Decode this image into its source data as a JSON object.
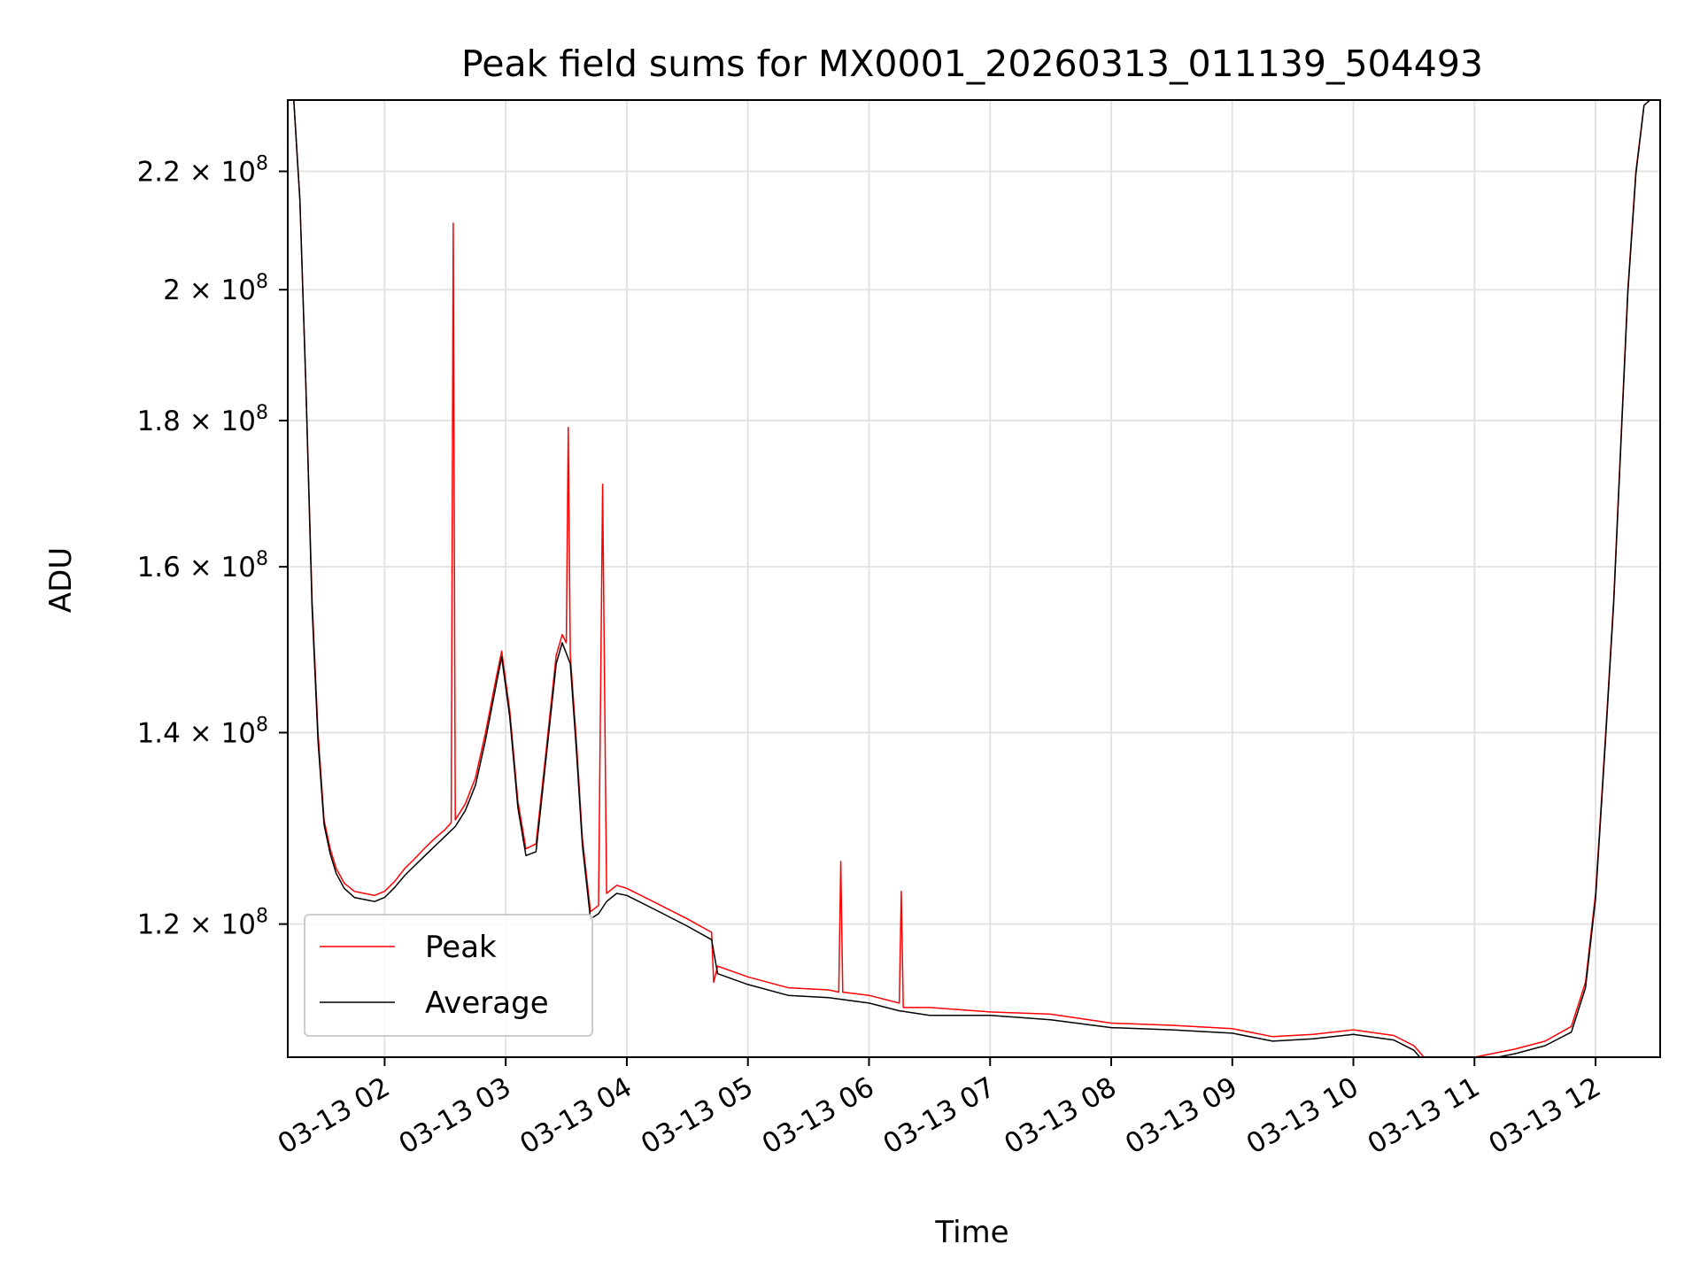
{
  "chart_data": {
    "type": "line",
    "title": "Peak field sums for MX0001_20260313_011139_504493",
    "xlabel": "Time",
    "ylabel": "ADU",
    "y_scale": "log",
    "xlim": [
      "2026-03-13 01:12",
      "2026-03-13 12:32"
    ],
    "ylim": [
      107800000.0,
      233000000.0
    ],
    "grid": true,
    "legend_position": "lower-left",
    "x_ticks": [
      "2026-03-13 02:00",
      "2026-03-13 03:00",
      "2026-03-13 04:00",
      "2026-03-13 05:00",
      "2026-03-13 06:00",
      "2026-03-13 07:00",
      "2026-03-13 08:00",
      "2026-03-13 09:00",
      "2026-03-13 10:00",
      "2026-03-13 11:00",
      "2026-03-13 12:00"
    ],
    "x_tick_labels": [
      "03-13 02",
      "03-13 03",
      "03-13 04",
      "03-13 05",
      "03-13 06",
      "03-13 07",
      "03-13 08",
      "03-13 09",
      "03-13 10",
      "03-13 11",
      "03-13 12"
    ],
    "y_ticks": [
      {
        "value": 120000000.0,
        "mantissa": "1.2",
        "exponent": "8"
      },
      {
        "value": 140000000.0,
        "mantissa": "1.4",
        "exponent": "8"
      },
      {
        "value": 160000000.0,
        "mantissa": "1.6",
        "exponent": "8"
      },
      {
        "value": 180000000.0,
        "mantissa": "1.8",
        "exponent": "8"
      },
      {
        "value": 200000000.0,
        "mantissa": "2",
        "exponent": "8"
      },
      {
        "value": 220000000.0,
        "mantissa": "2.2",
        "exponent": "8"
      }
    ],
    "y_tick_base": "10",
    "series": [
      {
        "name": "Peak",
        "color": "#ff0000",
        "x": [
          "2026-03-13 01:12",
          "2026-03-13 01:15",
          "2026-03-13 01:18",
          "2026-03-13 01:21",
          "2026-03-13 01:24",
          "2026-03-13 01:27",
          "2026-03-13 01:30",
          "2026-03-13 01:33",
          "2026-03-13 01:36",
          "2026-03-13 01:40",
          "2026-03-13 01:45",
          "2026-03-13 01:50",
          "2026-03-13 01:55",
          "2026-03-13 02:00",
          "2026-03-13 02:05",
          "2026-03-13 02:10",
          "2026-03-13 02:15",
          "2026-03-13 02:20",
          "2026-03-13 02:25",
          "2026-03-13 02:30",
          "2026-03-13 02:33",
          "2026-03-13 02:34",
          "2026-03-13 02:35",
          "2026-03-13 02:40",
          "2026-03-13 02:45",
          "2026-03-13 02:50",
          "2026-03-13 02:55",
          "2026-03-13 02:58",
          "2026-03-13 03:02",
          "2026-03-13 03:06",
          "2026-03-13 03:10",
          "2026-03-13 03:15",
          "2026-03-13 03:20",
          "2026-03-13 03:25",
          "2026-03-13 03:28",
          "2026-03-13 03:30",
          "2026-03-13 03:31",
          "2026-03-13 03:32",
          "2026-03-13 03:35",
          "2026-03-13 03:38",
          "2026-03-13 03:42",
          "2026-03-13 03:46",
          "2026-03-13 03:48",
          "2026-03-13 03:50",
          "2026-03-13 03:55",
          "2026-03-13 04:00",
          "2026-03-13 04:15",
          "2026-03-13 04:30",
          "2026-03-13 04:42",
          "2026-03-13 04:43",
          "2026-03-13 04:45",
          "2026-03-13 05:00",
          "2026-03-13 05:20",
          "2026-03-13 05:40",
          "2026-03-13 05:45",
          "2026-03-13 05:46",
          "2026-03-13 05:47",
          "2026-03-13 06:00",
          "2026-03-13 06:15",
          "2026-03-13 06:16",
          "2026-03-13 06:17",
          "2026-03-13 06:30",
          "2026-03-13 07:00",
          "2026-03-13 07:30",
          "2026-03-13 08:00",
          "2026-03-13 08:30",
          "2026-03-13 09:00",
          "2026-03-13 09:20",
          "2026-03-13 09:40",
          "2026-03-13 10:00",
          "2026-03-13 10:20",
          "2026-03-13 10:30",
          "2026-03-13 10:38",
          "2026-03-13 10:45",
          "2026-03-13 11:00",
          "2026-03-13 11:20",
          "2026-03-13 11:35",
          "2026-03-13 11:48",
          "2026-03-13 11:55",
          "2026-03-13 12:00",
          "2026-03-13 12:05",
          "2026-03-13 12:09",
          "2026-03-13 12:13",
          "2026-03-13 12:16",
          "2026-03-13 12:20",
          "2026-03-13 12:24",
          "2026-03-13 12:27",
          "2026-03-13 12:32"
        ],
        "values": [
          233000000.0,
          233000000.0,
          215000000.0,
          185000000.0,
          156000000.0,
          140000000.0,
          130500000.0,
          127500000.0,
          125500000.0,
          124000000.0,
          123200000.0,
          123000000.0,
          122800000.0,
          123200000.0,
          124200000.0,
          125500000.0,
          126500000.0,
          127600000.0,
          128600000.0,
          129500000.0,
          130200000.0,
          211000000.0,
          130500000.0,
          132200000.0,
          135000000.0,
          140000000.0,
          146000000.0,
          149500000.0,
          142500000.0,
          132500000.0,
          127500000.0,
          128000000.0,
          138000000.0,
          149000000.0,
          151500000.0,
          150500000.0,
          179000000.0,
          149000000.0,
          139000000.0,
          128500000.0,
          121200000.0,
          121800000.0,
          171000000.0,
          123000000.0,
          123800000.0,
          123500000.0,
          122000000.0,
          120500000.0,
          119200000.0,
          114500000.0,
          116000000.0,
          115000000.0,
          114000000.0,
          113800000.0,
          113600000.0,
          126200000.0,
          113600000.0,
          113300000.0,
          112600000.0,
          123200000.0,
          112200000.0,
          112200000.0,
          111800000.0,
          111600000.0,
          110800000.0,
          110600000.0,
          110300000.0,
          109600000.0,
          109800000.0,
          110200000.0,
          109700000.0,
          108800000.0,
          107200000.0,
          106700000.0,
          107800000.0,
          108500000.0,
          109200000.0,
          110500000.0,
          114500000.0,
          123000000.0,
          140000000.0,
          156000000.0,
          180000000.0,
          200000000.0,
          220000000.0,
          232000000.0,
          233000000.0,
          233000000.0
        ]
      },
      {
        "name": "Average",
        "color": "#000000",
        "x": [
          "2026-03-13 01:12",
          "2026-03-13 01:15",
          "2026-03-13 01:18",
          "2026-03-13 01:21",
          "2026-03-13 01:24",
          "2026-03-13 01:27",
          "2026-03-13 01:30",
          "2026-03-13 01:33",
          "2026-03-13 01:36",
          "2026-03-13 01:40",
          "2026-03-13 01:45",
          "2026-03-13 01:50",
          "2026-03-13 01:55",
          "2026-03-13 02:00",
          "2026-03-13 02:05",
          "2026-03-13 02:10",
          "2026-03-13 02:15",
          "2026-03-13 02:20",
          "2026-03-13 02:25",
          "2026-03-13 02:30",
          "2026-03-13 02:35",
          "2026-03-13 02:40",
          "2026-03-13 02:45",
          "2026-03-13 02:50",
          "2026-03-13 02:55",
          "2026-03-13 02:58",
          "2026-03-13 03:02",
          "2026-03-13 03:06",
          "2026-03-13 03:10",
          "2026-03-13 03:15",
          "2026-03-13 03:20",
          "2026-03-13 03:25",
          "2026-03-13 03:28",
          "2026-03-13 03:32",
          "2026-03-13 03:35",
          "2026-03-13 03:38",
          "2026-03-13 03:42",
          "2026-03-13 03:46",
          "2026-03-13 03:50",
          "2026-03-13 03:55",
          "2026-03-13 04:00",
          "2026-03-13 04:15",
          "2026-03-13 04:30",
          "2026-03-13 04:42",
          "2026-03-13 04:45",
          "2026-03-13 05:00",
          "2026-03-13 05:20",
          "2026-03-13 05:40",
          "2026-03-13 06:00",
          "2026-03-13 06:15",
          "2026-03-13 06:30",
          "2026-03-13 07:00",
          "2026-03-13 07:30",
          "2026-03-13 08:00",
          "2026-03-13 08:30",
          "2026-03-13 09:00",
          "2026-03-13 09:20",
          "2026-03-13 09:40",
          "2026-03-13 10:00",
          "2026-03-13 10:20",
          "2026-03-13 10:30",
          "2026-03-13 10:38",
          "2026-03-13 10:45",
          "2026-03-13 11:00",
          "2026-03-13 11:20",
          "2026-03-13 11:35",
          "2026-03-13 11:48",
          "2026-03-13 11:55",
          "2026-03-13 12:00",
          "2026-03-13 12:05",
          "2026-03-13 12:09",
          "2026-03-13 12:13",
          "2026-03-13 12:16",
          "2026-03-13 12:20",
          "2026-03-13 12:24",
          "2026-03-13 12:27",
          "2026-03-13 12:32"
        ],
        "values": [
          233000000.0,
          233000000.0,
          215000000.0,
          185000000.0,
          155000000.0,
          139000000.0,
          130000000.0,
          127000000.0,
          125000000.0,
          123500000.0,
          122600000.0,
          122400000.0,
          122200000.0,
          122600000.0,
          123600000.0,
          124800000.0,
          125800000.0,
          126800000.0,
          127800000.0,
          128800000.0,
          129800000.0,
          131500000.0,
          134200000.0,
          139200000.0,
          145200000.0,
          148800000.0,
          141800000.0,
          131800000.0,
          126800000.0,
          127200000.0,
          137200000.0,
          148000000.0,
          150500000.0,
          148000000.0,
          138000000.0,
          127800000.0,
          120500000.0,
          121000000.0,
          122200000.0,
          123000000.0,
          122800000.0,
          121300000.0,
          119800000.0,
          118500000.0,
          115300000.0,
          114300000.0,
          113300000.0,
          113100000.0,
          112600000.0,
          111900000.0,
          111500000.0,
          111500000.0,
          111100000.0,
          110400000.0,
          110200000.0,
          109900000.0,
          109200000.0,
          109400000.0,
          109800000.0,
          109300000.0,
          108400000.0,
          106800000.0,
          106300000.0,
          107400000.0,
          108100000.0,
          108800000.0,
          110000000.0,
          114000000.0,
          122500000.0,
          139500000.0,
          155500000.0,
          179500000.0,
          199500000.0,
          219500000.0,
          232000000.0,
          233000000.0,
          233000000.0
        ]
      }
    ]
  }
}
